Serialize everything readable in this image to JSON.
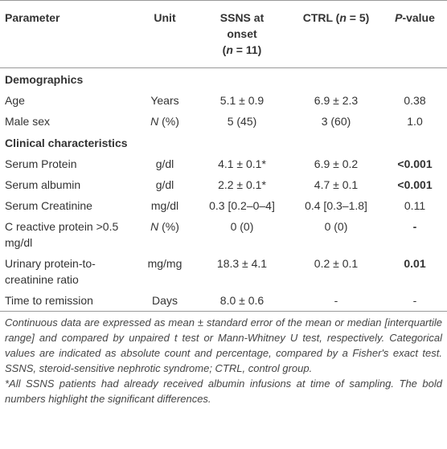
{
  "table": {
    "header": [
      [
        "Parameter"
      ],
      [
        "Unit"
      ],
      [
        "SSNS at onset",
        "(",
        "n",
        " = 11)"
      ],
      [
        "CTRL (",
        "n",
        " = 5)"
      ],
      [
        "P",
        "-value"
      ]
    ],
    "rows": [
      "Demographics",
      [
        "Age",
        "Years",
        "5.1 ± 0.9",
        "6.9 ± 2.3",
        "0.38"
      ],
      [
        "Male sex",
        [
          "N",
          " (%)"
        ],
        "5 (45)",
        "3 (60)",
        "1.0"
      ],
      "Clinical characteristics",
      [
        "Serum Protein",
        "g/dl",
        "4.1 ± 0.1*",
        "6.9 ± 0.2",
        "<0.001"
      ],
      [
        "Serum albumin",
        "g/dl",
        "2.2 ± 0.1*",
        "4.7 ± 0.1",
        "<0.001"
      ],
      [
        "Serum Creatinine",
        "mg/dl",
        "0.3 [0.2–0–4]",
        "0.4 [0.3–1.8]",
        "0.11"
      ],
      [
        "C reactive protein >0.5 mg/dl",
        [
          "N",
          " (%)"
        ],
        "0 (0)",
        "0 (0)",
        "-"
      ],
      [
        "Urinary protein-to-creatinine ratio",
        "mg/mg",
        "18.3 ± 4.1",
        "0.2 ± 0.1",
        "0.01"
      ],
      [
        "Time to remission",
        "Days",
        "8.0 ± 0.6",
        "-",
        "-"
      ]
    ],
    "footnote": [
      "Continuous data are expressed as mean ± standard error of the mean or median [interquartile range] and compared by unpaired t test or Mann-Whitney U test, respectively. Categorical values are indicated as absolute count and percentage, compared by a Fisher's exact test. SSNS, steroid-sensitive nephrotic syndrome; CTRL, control group.",
      "*All SSNS patients had already received albumin infusions at time of sampling. The bold numbers highlight the significant differences."
    ]
  }
}
